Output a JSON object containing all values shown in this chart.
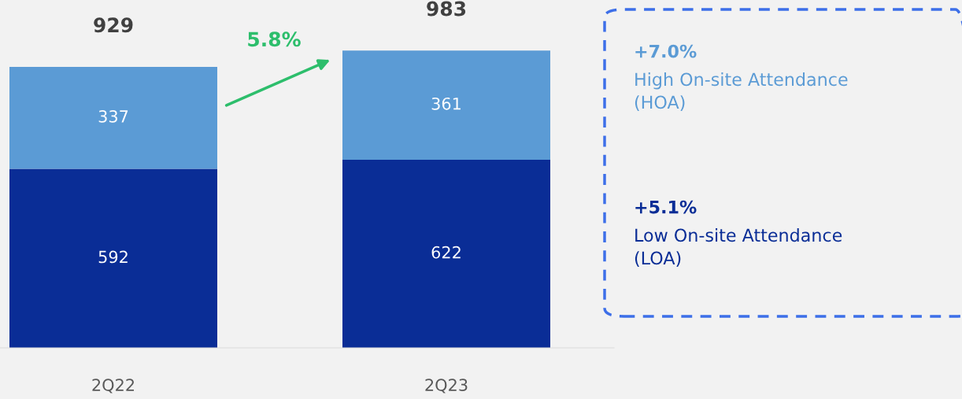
{
  "chart_data": {
    "type": "bar",
    "stacked": true,
    "categories": [
      "2Q22",
      "2Q23"
    ],
    "series": [
      {
        "name": "Low On-site Attendance\n(LOA)",
        "color": "#0a2d96",
        "values": [
          592,
          622
        ]
      },
      {
        "name": "High On-site Attendance\n(HOA)",
        "color": "#5b9bd5",
        "values": [
          337,
          361
        ]
      }
    ],
    "data_labels": true,
    "totals": [
      "929",
      "983"
    ],
    "legend": "right",
    "annotations": [
      "5.8%",
      "+5.1%",
      "+7.0%"
    ]
  }
}
